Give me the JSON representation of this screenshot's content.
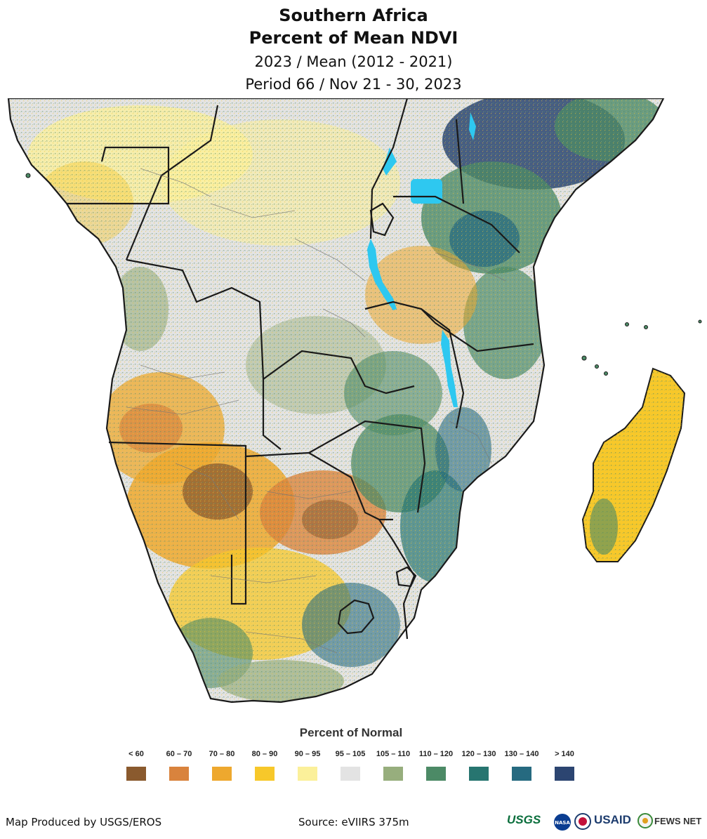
{
  "header": {
    "title": "Southern Africa",
    "subtitle": "Percent of Mean NDVI",
    "comparison": "2023 / Mean (2012 - 2021)",
    "period": "Period 66 / Nov 21 - 30, 2023"
  },
  "legend": {
    "title": "Percent of Normal",
    "classes": [
      {
        "label": "< 60",
        "color": "#8a5a2e"
      },
      {
        "label": "60 – 70",
        "color": "#d9833d"
      },
      {
        "label": "70 – 80",
        "color": "#eea82e"
      },
      {
        "label": "80 – 90",
        "color": "#f7c82a"
      },
      {
        "label": "90 – 95",
        "color": "#fbf09a"
      },
      {
        "label": "95 – 105",
        "color": "#e3e3e3"
      },
      {
        "label": "105 – 110",
        "color": "#97ae7d"
      },
      {
        "label": "110 – 120",
        "color": "#4c8a66"
      },
      {
        "label": "120 – 130",
        "color": "#277570"
      },
      {
        "label": "130 – 140",
        "color": "#266a80"
      },
      {
        "label": "> 140",
        "color": "#2c4571"
      }
    ]
  },
  "map": {
    "water_color": "#2ec8f0",
    "border_color": "#1a1a1a",
    "admin_color": "#777777"
  },
  "footer": {
    "credit": "Map Produced by USGS/EROS",
    "source": "Source: eVIIRS 375m"
  },
  "logos": {
    "usgs": "USGS",
    "nasa": "NASA",
    "usaid": "USAID",
    "fewsnet": "FEWS NET"
  }
}
